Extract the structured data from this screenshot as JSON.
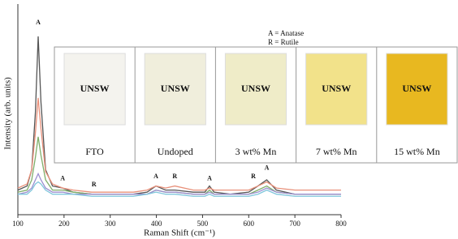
{
  "chart_data": {
    "type": "line",
    "xlabel": "Raman Shift (cm⁻¹)",
    "ylabel": "Intensity (arb. units)",
    "xlim": [
      100,
      800
    ],
    "xticks": [
      100,
      200,
      300,
      400,
      500,
      600,
      700,
      800
    ],
    "ylim": [
      0,
      100
    ],
    "x": [
      100,
      120,
      130,
      138,
      144,
      150,
      160,
      175,
      197,
      220,
      260,
      300,
      350,
      380,
      399,
      420,
      440,
      480,
      505,
      515,
      525,
      560,
      600,
      620,
      639,
      660,
      700,
      750,
      800
    ],
    "series": [
      {
        "color": "#555555",
        "values": [
          12,
          14,
          22,
          50,
          87,
          55,
          22,
          14,
          13,
          11,
          10,
          10,
          10,
          11,
          14,
          12,
          12,
          11,
          11,
          14,
          11,
          10,
          11,
          14,
          17,
          12,
          10,
          10,
          10
        ]
      },
      {
        "color": "#e8907a",
        "values": [
          13,
          15,
          22,
          40,
          57,
          42,
          21,
          15,
          13,
          12,
          11,
          11,
          11,
          12,
          14,
          13,
          14,
          12,
          12,
          13,
          12,
          12,
          12,
          14,
          16,
          13,
          12,
          12,
          12
        ]
      },
      {
        "color": "#7fae6a",
        "values": [
          11,
          12,
          17,
          28,
          38,
          29,
          17,
          12,
          12,
          11,
          10,
          10,
          10,
          10,
          12,
          11,
          11,
          10,
          10,
          12,
          10,
          10,
          10,
          12,
          14,
          11,
          10,
          10,
          10
        ]
      },
      {
        "color": "#9c8fd0",
        "values": [
          10,
          11,
          13,
          17,
          20,
          17,
          13,
          11,
          11,
          10,
          10,
          10,
          10,
          10,
          12,
          11,
          11,
          10,
          10,
          11,
          10,
          10,
          10,
          11,
          13,
          11,
          10,
          10,
          10
        ]
      },
      {
        "color": "#7fc6dc",
        "values": [
          10,
          10,
          12,
          15,
          16,
          15,
          12,
          10,
          10,
          10,
          9,
          9,
          9,
          10,
          11,
          10,
          10,
          9,
          9,
          10,
          9,
          9,
          9,
          10,
          12,
          10,
          9,
          9,
          9
        ]
      }
    ],
    "annotations": [
      {
        "text": "A",
        "x": 144,
        "y": 92
      },
      {
        "text": "A",
        "x": 197,
        "y": 16
      },
      {
        "text": "R",
        "x": 265,
        "y": 13
      },
      {
        "text": "A",
        "x": 399,
        "y": 17
      },
      {
        "text": "R",
        "x": 440,
        "y": 17
      },
      {
        "text": "A",
        "x": 515,
        "y": 16
      },
      {
        "text": "R",
        "x": 610,
        "y": 17
      },
      {
        "text": "A",
        "x": 639,
        "y": 21
      }
    ],
    "legend_notes": [
      "A = Anatase",
      "R = Rutile"
    ],
    "photos": [
      {
        "caption": "FTO",
        "text": "UNSW",
        "color": "#f4f3ee"
      },
      {
        "caption": "Undoped",
        "text": "UNSW",
        "color": "#f0eedc"
      },
      {
        "caption": "3 wt% Mn",
        "text": "UNSW",
        "color": "#efecc8"
      },
      {
        "caption": "7 wt% Mn",
        "text": "UNSW",
        "color": "#f2e28a"
      },
      {
        "caption": "15 wt% Mn",
        "text": "UNSW",
        "color": "#e8b820"
      }
    ]
  }
}
